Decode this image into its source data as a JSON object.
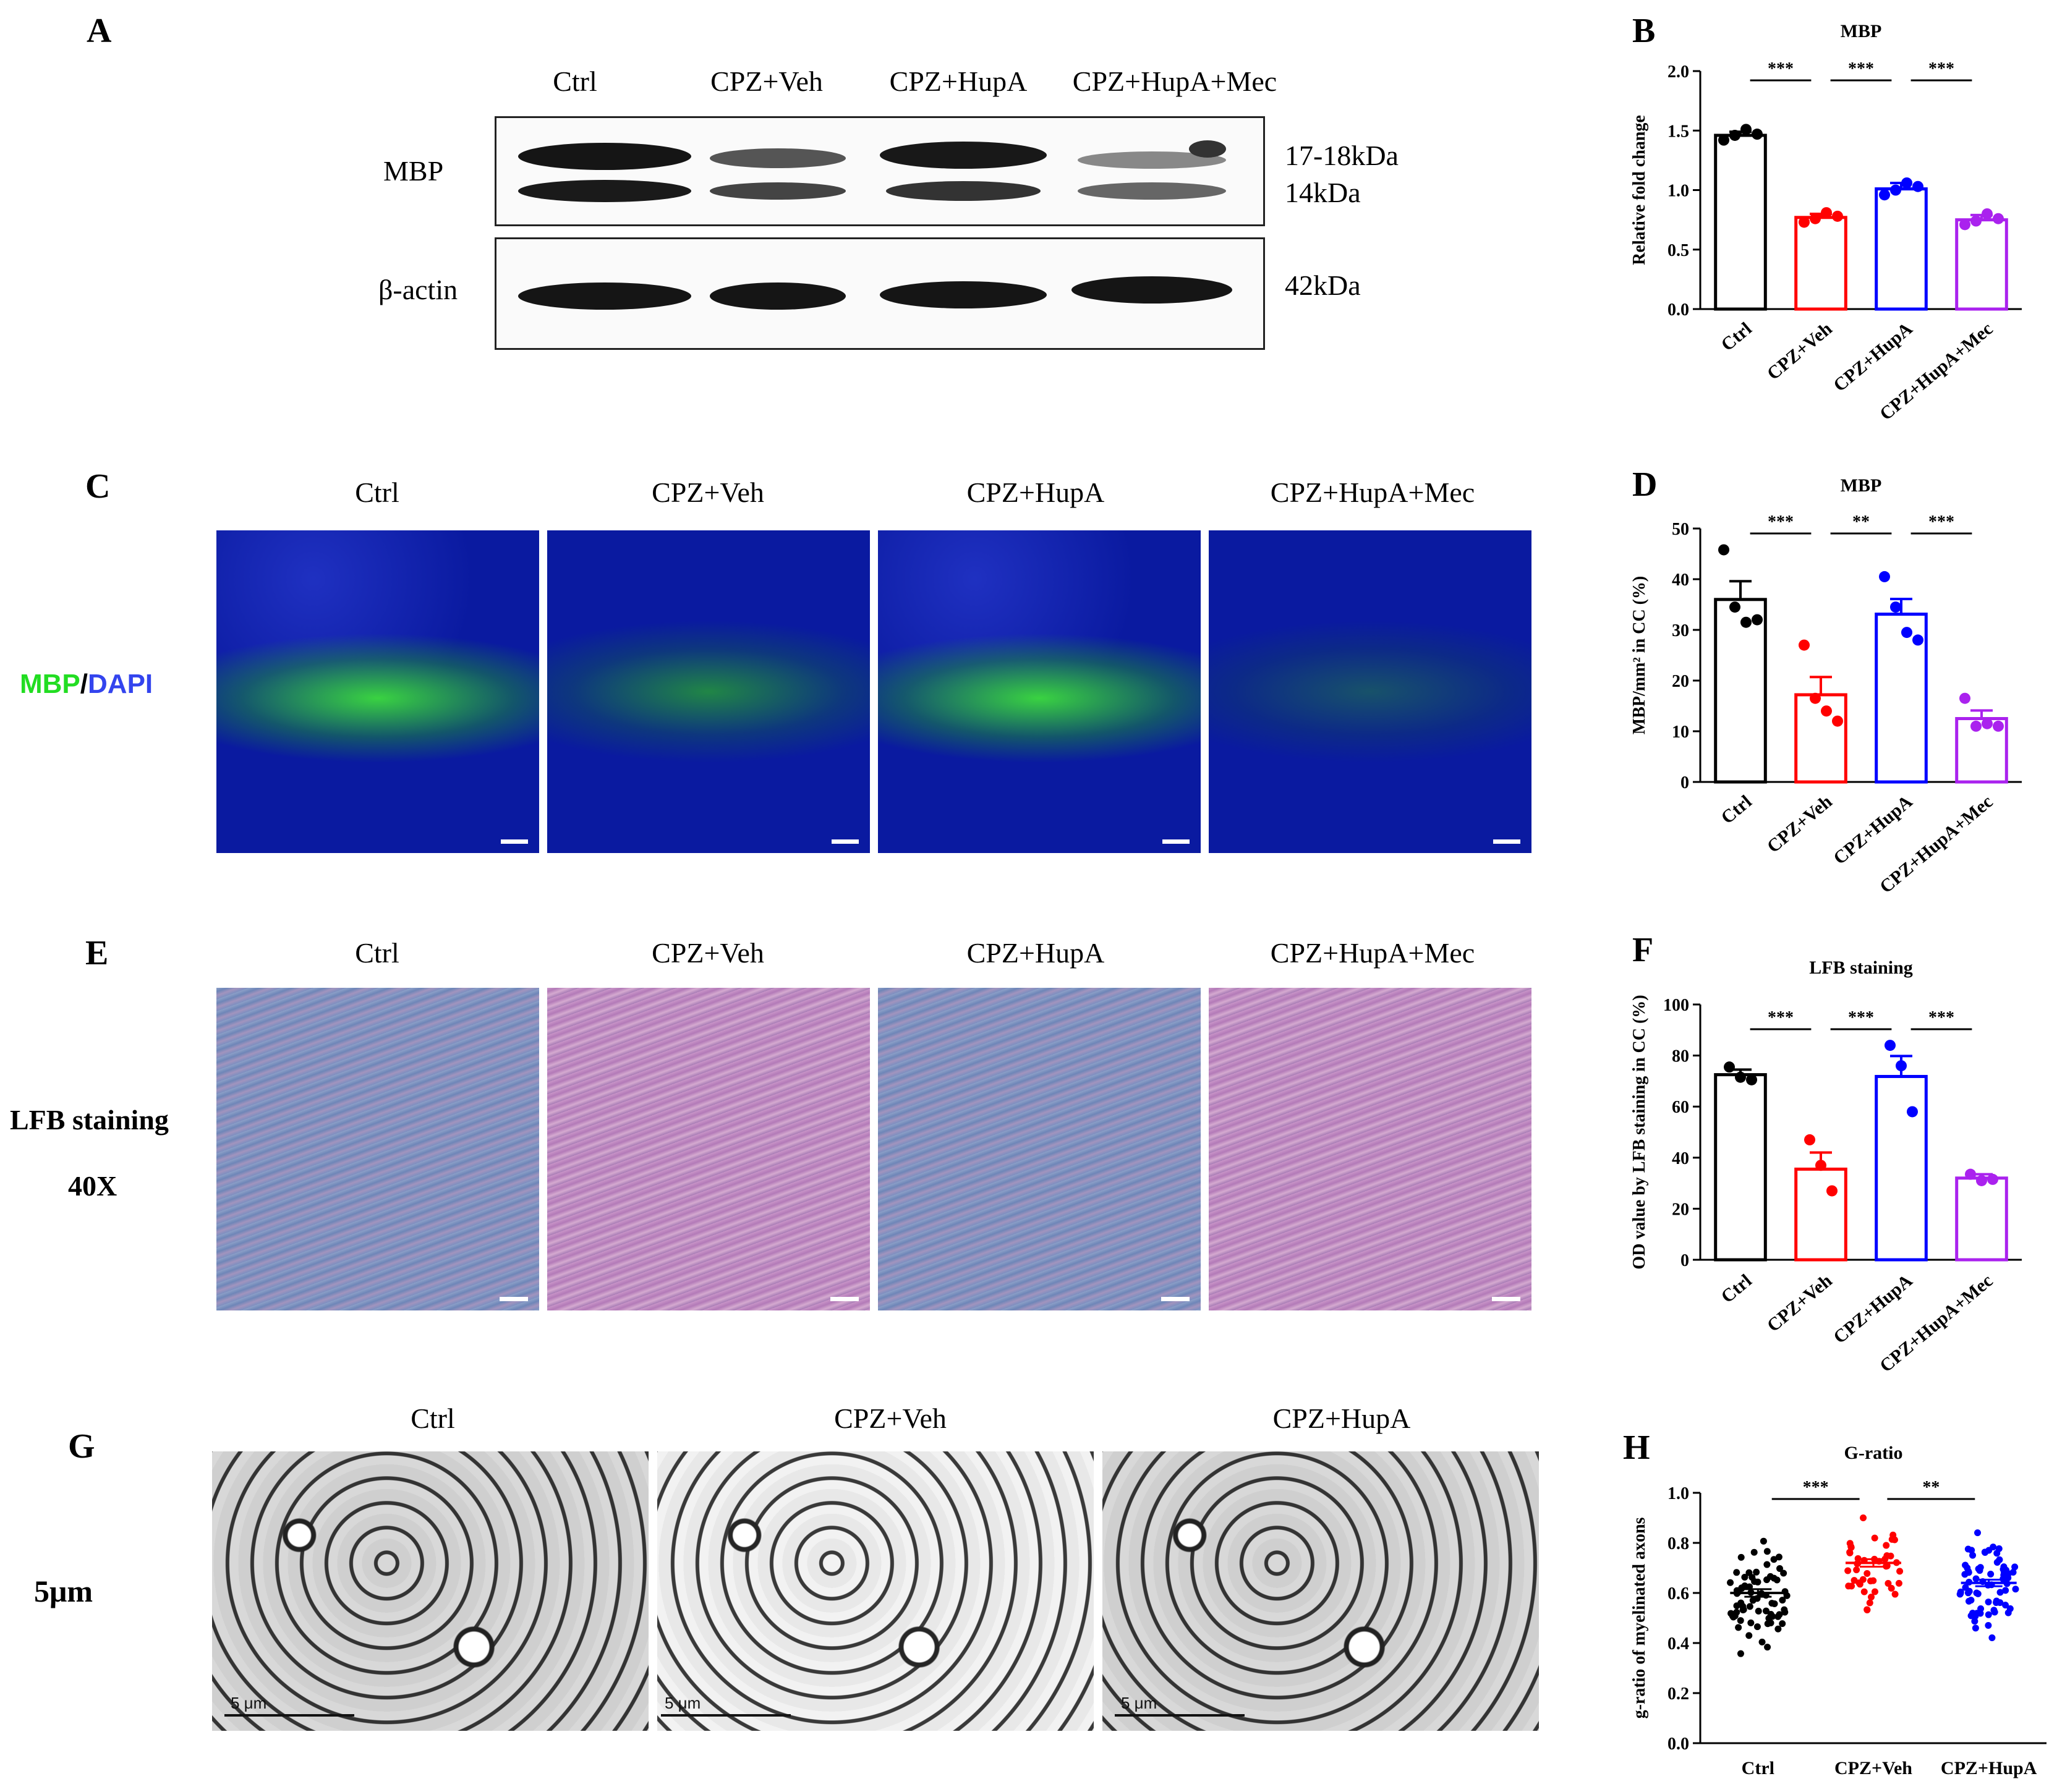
{
  "panels": {
    "A": {
      "label": "A",
      "groups": [
        "Ctrl",
        "CPZ+Veh",
        "CPZ+HupA",
        "CPZ+HupA+Mec"
      ],
      "rows": [
        {
          "name": "MBP",
          "sizes": [
            "17-18kDa",
            "14kDa"
          ]
        },
        {
          "name": "β-actin",
          "sizes": [
            "42kDa"
          ]
        }
      ]
    },
    "B": {
      "label": "B"
    },
    "C": {
      "label": "C",
      "groups": [
        "Ctrl",
        "CPZ+Veh",
        "CPZ+HupA",
        "CPZ+HupA+Mec"
      ],
      "stain_a": "MBP",
      "stain_sep": "/",
      "stain_b": "DAPI",
      "green": "#22dd22",
      "blue": "#3344ee"
    },
    "D": {
      "label": "D"
    },
    "E": {
      "label": "E",
      "groups": [
        "Ctrl",
        "CPZ+Veh",
        "CPZ+HupA",
        "CPZ+HupA+Mec"
      ],
      "side1": "LFB staining",
      "side2": "40X"
    },
    "F": {
      "label": "F"
    },
    "G": {
      "label": "G",
      "groups": [
        "Ctrl",
        "CPZ+Veh",
        "CPZ+HupA"
      ],
      "side": "5μm",
      "scale_text": "5 μm"
    },
    "H": {
      "label": "H"
    }
  },
  "chart_data": [
    {
      "id": "B",
      "type": "bar",
      "title": "MBP",
      "ylabel": "Relative fold change",
      "xlabel": "",
      "categories": [
        "Ctrl",
        "CPZ+Veh",
        "CPZ+HupA",
        "CPZ+HupA+Mec"
      ],
      "colors": [
        "#000000",
        "#ff0000",
        "#0000ff",
        "#aa22ee"
      ],
      "values": [
        1.46,
        0.77,
        1.01,
        0.75
      ],
      "errors": [
        0.03,
        0.03,
        0.05,
        0.04
      ],
      "points": [
        [
          1.42,
          1.46,
          1.51,
          1.47
        ],
        [
          0.73,
          0.76,
          0.81,
          0.78
        ],
        [
          0.96,
          1.0,
          1.06,
          1.03
        ],
        [
          0.71,
          0.74,
          0.8,
          0.76
        ]
      ],
      "ylim": [
        0,
        2.0
      ],
      "yticks": [
        0.0,
        0.5,
        1.0,
        1.5,
        2.0
      ],
      "tick_decimals": 1,
      "sig": [
        {
          "from": 0,
          "to": 1,
          "text": "***"
        },
        {
          "from": 1,
          "to": 2,
          "text": "***"
        },
        {
          "from": 2,
          "to": 3,
          "text": "***"
        }
      ]
    },
    {
      "id": "D",
      "type": "bar",
      "title": "MBP",
      "ylabel": "MBP/mm² in CC (%)",
      "xlabel": "",
      "categories": [
        "Ctrl",
        "CPZ+Veh",
        "CPZ+HupA",
        "CPZ+HupA+Mec"
      ],
      "colors": [
        "#000000",
        "#ff0000",
        "#0000ff",
        "#aa22ee"
      ],
      "values": [
        36.0,
        17.2,
        33.1,
        12.5
      ],
      "errors": [
        3.6,
        3.5,
        3.0,
        1.6
      ],
      "points": [
        [
          45.8,
          34.5,
          31.5,
          32.0
        ],
        [
          27.0,
          16.5,
          14.0,
          12.0
        ],
        [
          40.5,
          34.5,
          29.5,
          28.0
        ],
        [
          16.5,
          11.0,
          11.5,
          11.0
        ]
      ],
      "ylim": [
        0,
        50
      ],
      "yticks": [
        0,
        10,
        20,
        30,
        40,
        50
      ],
      "tick_decimals": 0,
      "sig": [
        {
          "from": 0,
          "to": 1,
          "text": "***"
        },
        {
          "from": 1,
          "to": 2,
          "text": "**"
        },
        {
          "from": 2,
          "to": 3,
          "text": "***"
        }
      ]
    },
    {
      "id": "F",
      "type": "bar",
      "title": "LFB staining",
      "ylabel": "OD value by LFB staining in CC (%)",
      "xlabel": "",
      "categories": [
        "Ctrl",
        "CPZ+Veh",
        "CPZ+HupA",
        "CPZ+HupA+Mec"
      ],
      "colors": [
        "#000000",
        "#ff0000",
        "#0000ff",
        "#aa22ee"
      ],
      "values": [
        72.5,
        35.5,
        71.8,
        32.0
      ],
      "errors": [
        2.0,
        6.5,
        8.0,
        1.5
      ],
      "points": [
        [
          75.5,
          71.5,
          70.5
        ],
        [
          47.0,
          37.0,
          27.0
        ],
        [
          84.0,
          76.0,
          58.0
        ],
        [
          33.5,
          31.0,
          31.5
        ]
      ],
      "ylim": [
        0,
        100
      ],
      "yticks": [
        0,
        20,
        40,
        60,
        80,
        100
      ],
      "tick_decimals": 0,
      "sig": [
        {
          "from": 0,
          "to": 1,
          "text": "***"
        },
        {
          "from": 1,
          "to": 2,
          "text": "***"
        },
        {
          "from": 2,
          "to": 3,
          "text": "***"
        }
      ]
    },
    {
      "id": "H",
      "type": "scatter",
      "title": "G-ratio",
      "ylabel": "g-ratio of myelinated axons",
      "xlabel": "",
      "categories": [
        "Ctrl",
        "CPZ+Veh",
        "CPZ+HupA"
      ],
      "colors": [
        "#000000",
        "#ff0000",
        "#0000ff"
      ],
      "means": [
        0.6,
        0.72,
        0.64
      ],
      "sem": [
        0.015,
        0.015,
        0.013
      ],
      "ranges": [
        [
          0.3,
          0.85
        ],
        [
          0.47,
          0.9
        ],
        [
          0.42,
          0.92
        ]
      ],
      "counts": [
        70,
        45,
        70
      ],
      "ylim": [
        0,
        1.0
      ],
      "yticks": [
        0.0,
        0.2,
        0.4,
        0.6,
        0.8,
        1.0
      ],
      "tick_decimals": 1,
      "sig": [
        {
          "from": 0,
          "to": 1,
          "text": "***"
        },
        {
          "from": 1,
          "to": 2,
          "text": "**"
        }
      ]
    }
  ]
}
